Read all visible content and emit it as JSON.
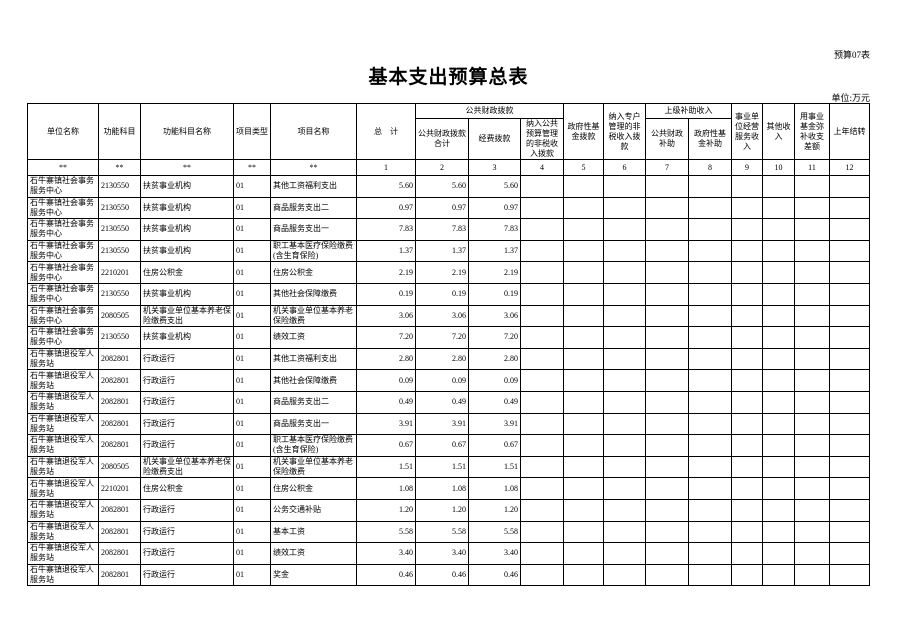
{
  "form_tag": "预算07表",
  "title": "基本支出预算总表",
  "unit": "单位:万元",
  "headers": {
    "unit_name": "单位名称",
    "func_code": "功能科目",
    "func_name": "功能科目名称",
    "proj_type": "项目类型",
    "proj_name": "项目名称",
    "total": "总　计",
    "public_fiscal": "公共财政拨款",
    "pf_total": "公共财政拨款合计",
    "pf_funds": "经费拨款",
    "pf_nontax": "纳入公共预算管理的非税收入拨款",
    "gov_fund": "政府性基金拨款",
    "special_nontax": "纳入专户管理的非税收入拨款",
    "superior": "上级补助收入",
    "sup_public": "公共财政补助",
    "sup_gov": "政府性基金补助",
    "business": "事业单位经营服务收入",
    "other": "其他收入",
    "reserve": "用事业基金弥补收支差额",
    "carryover": "上年结转"
  },
  "index_row": [
    "**",
    "**",
    "**",
    "**",
    "**",
    "1",
    "2",
    "3",
    "4",
    "5",
    "6",
    "7",
    "8",
    "9",
    "10",
    "11",
    "12"
  ],
  "rows": [
    {
      "unit": "石牛寨镇社会事务服务中心",
      "code": "2130550",
      "fname": "扶贫事业机构",
      "type": "01",
      "pname": "其他工资福利支出",
      "total": "5.60",
      "pf": "5.60",
      "funds": "5.60"
    },
    {
      "unit": "石牛寨镇社会事务服务中心",
      "code": "2130550",
      "fname": "扶贫事业机构",
      "type": "01",
      "pname": "商品服务支出二",
      "total": "0.97",
      "pf": "0.97",
      "funds": "0.97"
    },
    {
      "unit": "石牛寨镇社会事务服务中心",
      "code": "2130550",
      "fname": "扶贫事业机构",
      "type": "01",
      "pname": "商品服务支出一",
      "total": "7.83",
      "pf": "7.83",
      "funds": "7.83"
    },
    {
      "unit": "石牛寨镇社会事务服务中心",
      "code": "2130550",
      "fname": "扶贫事业机构",
      "type": "01",
      "pname": "职工基本医疗保险缴费(含生育保险)",
      "total": "1.37",
      "pf": "1.37",
      "funds": "1.37"
    },
    {
      "unit": "石牛寨镇社会事务服务中心",
      "code": "2210201",
      "fname": "住房公积金",
      "type": "01",
      "pname": "住房公积金",
      "total": "2.19",
      "pf": "2.19",
      "funds": "2.19"
    },
    {
      "unit": "石牛寨镇社会事务服务中心",
      "code": "2130550",
      "fname": "扶贫事业机构",
      "type": "01",
      "pname": "其他社会保障缴费",
      "total": "0.19",
      "pf": "0.19",
      "funds": "0.19"
    },
    {
      "unit": "石牛寨镇社会事务服务中心",
      "code": "2080505",
      "fname": "机关事业单位基本养老保险缴费支出",
      "type": "01",
      "pname": "机关事业单位基本养老保险缴费",
      "total": "3.06",
      "pf": "3.06",
      "funds": "3.06"
    },
    {
      "unit": "石牛寨镇社会事务服务中心",
      "code": "2130550",
      "fname": "扶贫事业机构",
      "type": "01",
      "pname": "绩效工资",
      "total": "7.20",
      "pf": "7.20",
      "funds": "7.20"
    },
    {
      "unit": "石牛寨镇退役军人服务站",
      "code": "2082801",
      "fname": "行政运行",
      "type": "01",
      "pname": "其他工资福利支出",
      "total": "2.80",
      "pf": "2.80",
      "funds": "2.80"
    },
    {
      "unit": "石牛寨镇退役军人服务站",
      "code": "2082801",
      "fname": "行政运行",
      "type": "01",
      "pname": "其他社会保障缴费",
      "total": "0.09",
      "pf": "0.09",
      "funds": "0.09"
    },
    {
      "unit": "石牛寨镇退役军人服务站",
      "code": "2082801",
      "fname": "行政运行",
      "type": "01",
      "pname": "商品服务支出二",
      "total": "0.49",
      "pf": "0.49",
      "funds": "0.49"
    },
    {
      "unit": "石牛寨镇退役军人服务站",
      "code": "2082801",
      "fname": "行政运行",
      "type": "01",
      "pname": "商品服务支出一",
      "total": "3.91",
      "pf": "3.91",
      "funds": "3.91"
    },
    {
      "unit": "石牛寨镇退役军人服务站",
      "code": "2082801",
      "fname": "行政运行",
      "type": "01",
      "pname": "职工基本医疗保险缴费(含生育保险)",
      "total": "0.67",
      "pf": "0.67",
      "funds": "0.67"
    },
    {
      "unit": "石牛寨镇退役军人服务站",
      "code": "2080505",
      "fname": "机关事业单位基本养老保险缴费支出",
      "type": "01",
      "pname": "机关事业单位基本养老保险缴费",
      "total": "1.51",
      "pf": "1.51",
      "funds": "1.51"
    },
    {
      "unit": "石牛寨镇退役军人服务站",
      "code": "2210201",
      "fname": "住房公积金",
      "type": "01",
      "pname": "住房公积金",
      "total": "1.08",
      "pf": "1.08",
      "funds": "1.08"
    },
    {
      "unit": "石牛寨镇退役军人服务站",
      "code": "2082801",
      "fname": "行政运行",
      "type": "01",
      "pname": "公务交通补贴",
      "total": "1.20",
      "pf": "1.20",
      "funds": "1.20"
    },
    {
      "unit": "石牛寨镇退役军人服务站",
      "code": "2082801",
      "fname": "行政运行",
      "type": "01",
      "pname": "基本工资",
      "total": "5.58",
      "pf": "5.58",
      "funds": "5.58"
    },
    {
      "unit": "石牛寨镇退役军人服务站",
      "code": "2082801",
      "fname": "行政运行",
      "type": "01",
      "pname": "绩效工资",
      "total": "3.40",
      "pf": "3.40",
      "funds": "3.40"
    },
    {
      "unit": "石牛寨镇退役军人服务站",
      "code": "2082801",
      "fname": "行政运行",
      "type": "01",
      "pname": "奖金",
      "total": "0.46",
      "pf": "0.46",
      "funds": "0.46"
    }
  ]
}
